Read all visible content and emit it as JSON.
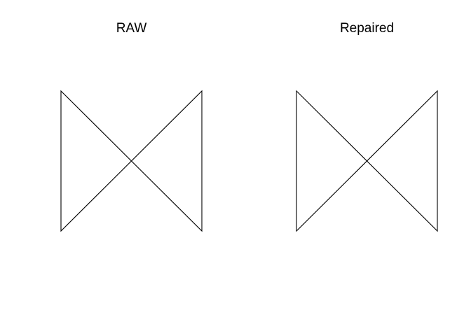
{
  "panels": [
    {
      "title": "RAW",
      "shape": "self-intersecting bowtie polygon",
      "vertices": [
        [
          0,
          0
        ],
        [
          1,
          1
        ],
        [
          1,
          0
        ],
        [
          0,
          1
        ]
      ]
    },
    {
      "title": "Repaired",
      "shape": "bowtie polygon split into two triangles",
      "vertices": [
        [
          0,
          0
        ],
        [
          1,
          1
        ],
        [
          1,
          0
        ],
        [
          0,
          1
        ]
      ]
    }
  ],
  "colors": {
    "background": "#ffffff",
    "stroke": "#000000",
    "text": "#000000"
  }
}
